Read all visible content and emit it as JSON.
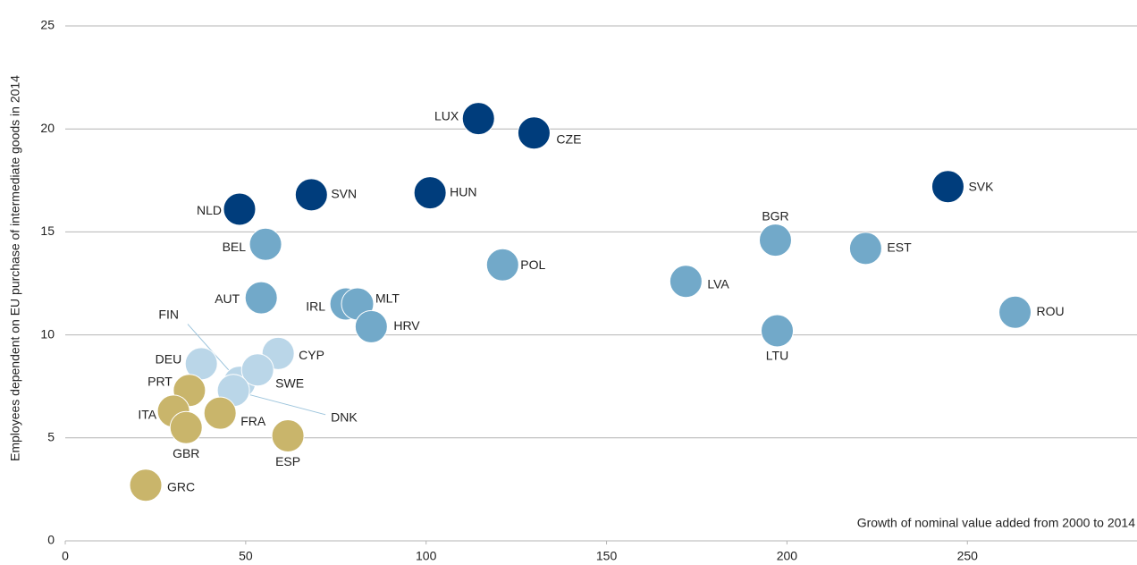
{
  "chart_data": {
    "type": "scatter",
    "y_label": "Employees dependent on EU purchase of intermediate goods in 2014",
    "x_label": "Growth of nominal value added from 2000 to 2014",
    "xlim": [
      0,
      297
    ],
    "xticks": [
      0,
      50,
      100,
      150,
      200,
      250
    ],
    "ylim": [
      0,
      25
    ],
    "yticks": [
      0,
      5,
      10,
      15,
      20,
      25
    ],
    "grid": true,
    "labels": [
      "LUX",
      "CZE",
      "SVN",
      "HUN",
      "NLD",
      "SVK",
      "BEL",
      "BGR",
      "EST",
      "POL",
      "LVA",
      "AUT",
      "IRL",
      "MLT",
      "HRV",
      "ROU",
      "LTU",
      "CYP",
      "DEU",
      "FIN",
      "SWE",
      "DNK",
      "PRT",
      "ITA",
      "FRA",
      "GBR",
      "ESP",
      "GRC"
    ],
    "x": [
      114.5,
      129.9,
      68.2,
      101.1,
      48.3,
      244.6,
      55.5,
      196.8,
      221.8,
      121.2,
      172,
      54.3,
      77.8,
      81,
      84.8,
      263.2,
      197.3,
      59,
      37.7,
      48.3,
      53.3,
      46.6,
      34.4,
      30,
      42.9,
      33.5,
      61.7,
      22.3
    ],
    "values": [
      20.5,
      19.8,
      16.8,
      16.9,
      16.1,
      17.2,
      14.4,
      14.6,
      14.2,
      13.4,
      12.6,
      11.8,
      11.5,
      11.5,
      10.4,
      11.1,
      10.2,
      9.1,
      8.6,
      7.7,
      8.3,
      7.3,
      7.3,
      6.3,
      6.2,
      5.5,
      5.1,
      2.7
    ],
    "colors": [
      "#003d7c",
      "#003d7c",
      "#003d7c",
      "#003d7c",
      "#003d7c",
      "#003d7c",
      "#72a9c9",
      "#72a9c9",
      "#72a9c9",
      "#72a9c9",
      "#72a9c9",
      "#72a9c9",
      "#72a9c9",
      "#72a9c9",
      "#72a9c9",
      "#72a9c9",
      "#72a9c9",
      "#bad6e8",
      "#bad6e8",
      "#bad6e8",
      "#bad6e8",
      "#bad6e8",
      "#c9b56b",
      "#c9b56b",
      "#c9b56b",
      "#c9b56b",
      "#c9b56b",
      "#c9b56b"
    ]
  }
}
